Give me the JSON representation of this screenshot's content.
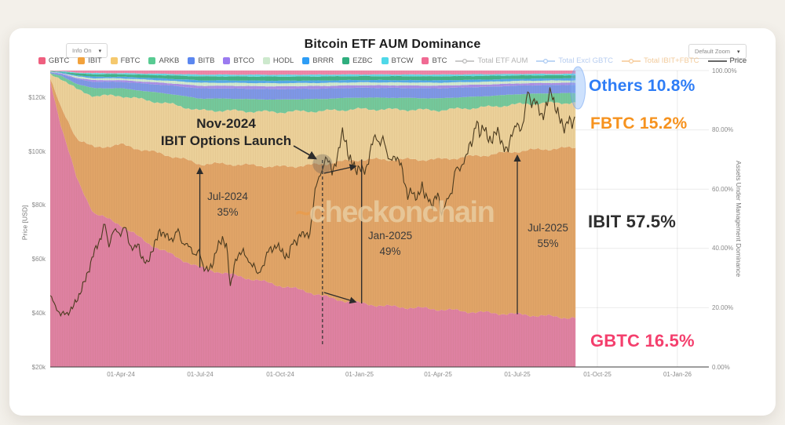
{
  "page": {
    "title": "Bitcoin ETF AUM Dominance",
    "watermark": "checkonchain"
  },
  "controls": {
    "info": "Info On",
    "zoom": "Default Zoom"
  },
  "legend": {
    "etfs": [
      {
        "label": "GBTC",
        "color": "#ef5f7f"
      },
      {
        "label": "IBIT",
        "color": "#f2a23c"
      },
      {
        "label": "FBTC",
        "color": "#f5c96e"
      },
      {
        "label": "ARKB",
        "color": "#58cb92"
      },
      {
        "label": "BITB",
        "color": "#5b87f0"
      },
      {
        "label": "BTCO",
        "color": "#9b7bf0"
      },
      {
        "label": "HODL",
        "color": "#cde9cd"
      },
      {
        "label": "BRRR",
        "color": "#2e9df5"
      },
      {
        "label": "EZBC",
        "color": "#2fae7e"
      },
      {
        "label": "BTCW",
        "color": "#4fd8e8"
      },
      {
        "label": "BTC",
        "color": "#f06a93"
      }
    ],
    "lines": [
      {
        "label": "Total ETF AUM",
        "color": "#b8b8b8",
        "label_color": "#b3b3b3",
        "marker": true
      },
      {
        "label": "Total Excl GBTC",
        "color": "#a9c9f2",
        "label_color": "#b7cdf0",
        "marker": true
      },
      {
        "label": "Total IBIT+FBTC",
        "color": "#f6c794",
        "label_color": "#f2cb9c",
        "marker": true
      },
      {
        "label": "Price",
        "color": "#333333",
        "label_color": "#444444",
        "marker": false
      }
    ]
  },
  "axes": {
    "left_title": "Price [USD]",
    "right_title": "Assets Under Management Dominance",
    "x_ticks": [
      "01-Apr-24",
      "01-Jul-24",
      "01-Oct-24",
      "01-Jan-25",
      "01-Apr-25",
      "01-Jul-25",
      "01-Oct-25",
      "01-Jan-26"
    ],
    "price_ticks": [
      "$120k",
      "$100k",
      "$80k",
      "$60k",
      "$40k",
      "$20k"
    ],
    "pct_ticks": [
      "100.00%",
      "80.00%",
      "60.00%",
      "40.00%",
      "20.00%",
      "0.00%"
    ]
  },
  "labels": {
    "others": {
      "text": "Others 10.8%",
      "color": "#2e7df6"
    },
    "fbtc": {
      "text": "FBTC 15.2%",
      "color": "#f6921e"
    },
    "ibit": {
      "text": "IBIT 57.5%",
      "color": "#2f2f2f"
    },
    "gbtc": {
      "text": "GBTC 16.5%",
      "color": "#f43f6d"
    }
  },
  "annotations": {
    "nov2024": {
      "line1": "Nov-2024",
      "line2": "IBIT Options Launch"
    },
    "jul2024": {
      "line1": "Jul-2024",
      "line2": "35%"
    },
    "jan2025": {
      "line1": "Jan-2025",
      "line2": "49%"
    },
    "jul2025": {
      "line1": "Jul-2025",
      "line2": "55%"
    }
  },
  "chart_data": {
    "type": "area",
    "subtype": "stacked-dominance-with-price-line",
    "title": "Bitcoin ETF AUM Dominance",
    "x_unit": "days since 2024-01-11 (ETF launch)",
    "x_tick_days": [
      81,
      172,
      264,
      356,
      446,
      537,
      629,
      721
    ],
    "x_tick_labels": [
      "01-Apr-24",
      "01-Jul-24",
      "01-Oct-24",
      "01-Jan-25",
      "01-Apr-25",
      "01-Jul-25",
      "01-Oct-25",
      "01-Jan-26"
    ],
    "left_axis": {
      "label": "Price [USD]",
      "scale": "linear",
      "range_usd_k": [
        20,
        130
      ],
      "tick_values_k": [
        120,
        100,
        80,
        60,
        40,
        20
      ]
    },
    "right_axis": {
      "label": "Assets Under Management Dominance",
      "range_pct": [
        0,
        100
      ],
      "tick_values_pct": [
        100,
        80,
        60,
        40,
        20,
        0
      ]
    },
    "stack_order_bottom_to_top": [
      "GBTC",
      "IBIT",
      "FBTC",
      "ARKB",
      "BITB",
      "BTCO",
      "HODL",
      "BRRR",
      "EZBC",
      "BTCW",
      "BTC"
    ],
    "dominance_pct": {
      "days": [
        0,
        12,
        31,
        50,
        81,
        111,
        142,
        172,
        203,
        234,
        264,
        295,
        313,
        325,
        356,
        387,
        415,
        446,
        476,
        507,
        537,
        568,
        604
      ],
      "GBTC": [
        96.5,
        82,
        63,
        52,
        48,
        42,
        37.5,
        33.5,
        31.5,
        29.5,
        27.5,
        25.5,
        24,
        23,
        21.5,
        20.5,
        20,
        19.5,
        18.8,
        18.2,
        17.8,
        17.2,
        16.5
      ],
      "IBIT": [
        1.0,
        5.5,
        14,
        22,
        27,
        31,
        33.5,
        35,
        37,
        38.5,
        40,
        42.5,
        44.5,
        46,
        48.5,
        49.5,
        50,
        50.5,
        52,
        53.5,
        55,
        56.3,
        57.5
      ],
      "FBTC": [
        1.2,
        10,
        16.5,
        17.5,
        16.5,
        17,
        17.5,
        18,
        18,
        18.2,
        18.5,
        18.3,
        17.8,
        17.6,
        17.0,
        16.9,
        16.8,
        16.6,
        16.4,
        16.1,
        15.8,
        15.5,
        15.2
      ],
      "Others": [
        1.3,
        2.5,
        6.5,
        8.5,
        8.5,
        10,
        11.5,
        13.5,
        13.5,
        13.8,
        14,
        13.7,
        13.7,
        13.4,
        13,
        13.1,
        13.2,
        13.4,
        12.8,
        12.2,
        11.4,
        11,
        10.8
      ]
    },
    "others_breakdown_weights": {
      "ARKB": 0.3,
      "BITB": 0.255,
      "BTCO": 0.065,
      "HODL": 0.075,
      "BRRR": 0.06,
      "EZBC": 0.1,
      "BTCW": 0.045,
      "BTC": 0.1
    },
    "price_usd_k": {
      "days": [
        0,
        5,
        12,
        20,
        26,
        35,
        40,
        45,
        50,
        55,
        58,
        63,
        67,
        72,
        77,
        81,
        86,
        92,
        97,
        101,
        106,
        111,
        116,
        121,
        126,
        131,
        136,
        142,
        147,
        152,
        157,
        162,
        166,
        172,
        176,
        181,
        186,
        192,
        198,
        203,
        207,
        212,
        217,
        222,
        227,
        232,
        234,
        239,
        245,
        250,
        255,
        260,
        264,
        269,
        274,
        279,
        284,
        289,
        295,
        298,
        301,
        305,
        309,
        313,
        316,
        320,
        324,
        328,
        332,
        336,
        340,
        344,
        348,
        352,
        356,
        360,
        364,
        368,
        372,
        375,
        379,
        383,
        387,
        391,
        395,
        399,
        403,
        407,
        411,
        415,
        419,
        423,
        427,
        431,
        435,
        439,
        443,
        446,
        450,
        454,
        458,
        462,
        466,
        470,
        474,
        478,
        482,
        486,
        490,
        494,
        498,
        502,
        506,
        510,
        514,
        518,
        522,
        526,
        530,
        534,
        537,
        541,
        545,
        549,
        553,
        557,
        561,
        565,
        568,
        572,
        576,
        580,
        584,
        588,
        592,
        596,
        600,
        604
      ],
      "values": [
        46.5,
        43,
        39.5,
        40,
        42,
        48,
        52,
        57,
        62,
        66,
        68,
        73,
        65,
        70,
        70.5,
        69.5,
        72,
        65,
        63.5,
        66,
        60,
        58,
        62.5,
        66,
        71,
        69,
        68,
        67.5,
        71,
        66,
        65,
        64.5,
        61,
        63,
        57,
        55.5,
        58,
        64,
        68,
        64.5,
        49.5,
        59,
        61,
        64,
        59,
        57.5,
        59,
        53.5,
        58,
        63,
        63.5,
        65.5,
        63.5,
        62,
        60.5,
        67,
        66.5,
        69.5,
        69.8,
        67.5,
        75,
        88,
        90,
        92,
        98.5,
        97,
        91.5,
        96,
        101,
        106.5,
        104,
        97,
        95,
        93.5,
        94,
        92,
        94.5,
        100,
        104.5,
        106,
        102.5,
        104.5,
        100,
        96.5,
        97,
        98,
        96,
        88,
        84,
        86,
        82,
        84,
        87.5,
        82.5,
        83.5,
        79,
        82.5,
        85,
        76.5,
        79.5,
        84,
        85,
        93.5,
        94,
        95,
        97,
        103.5,
        104,
        111,
        107,
        109.5,
        105,
        104.5,
        105.5,
        107.5,
        105,
        101,
        99.5,
        107,
        108.5,
        109.5,
        108,
        113,
        122,
        118,
        119.5,
        115.5,
        113.5,
        114.5,
        118,
        123.5,
        117,
        113,
        111,
        108.5,
        111.5,
        110.5,
        113.5
      ]
    },
    "end_values_pct": {
      "IBIT": 57.5,
      "GBTC": 16.5,
      "FBTC": 15.2,
      "Others": 10.8
    },
    "milestones": [
      {
        "date": "Jul-2024",
        "ibit_dominance_pct": 35,
        "day": 172
      },
      {
        "date": "Nov-2024",
        "event": "IBIT Options Launch",
        "day": 313
      },
      {
        "date": "Jan-2025",
        "ibit_dominance_pct": 49,
        "day": 358
      },
      {
        "date": "Jul-2025",
        "ibit_dominance_pct": 55,
        "day": 537
      }
    ]
  }
}
